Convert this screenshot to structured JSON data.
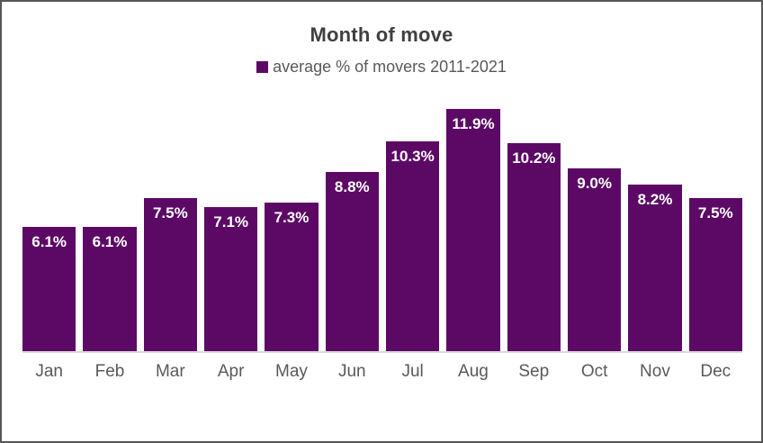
{
  "frame": {
    "background": "#ffffff",
    "border_color": "#575757"
  },
  "chart_data": {
    "type": "bar",
    "title": "Month of move",
    "title_color": "#404040",
    "legend": [
      {
        "label": "average % of movers 2011-2021",
        "color": "#5c0966"
      }
    ],
    "legend_position": "top",
    "categories": [
      "Jan",
      "Feb",
      "Mar",
      "Apr",
      "May",
      "Jun",
      "Jul",
      "Aug",
      "Sep",
      "Oct",
      "Nov",
      "Dec"
    ],
    "values": [
      6.1,
      6.1,
      7.5,
      7.1,
      7.3,
      8.8,
      10.3,
      11.9,
      10.2,
      9.0,
      8.2,
      7.5
    ],
    "data_labels": [
      "6.1%",
      "6.1%",
      "7.5%",
      "7.1%",
      "7.3%",
      "8.8%",
      "10.3%",
      "11.9%",
      "10.2%",
      "9.0%",
      "8.2%",
      "7.5%"
    ],
    "xlabel": "",
    "ylabel": "",
    "ylim": [
      0,
      12.3
    ],
    "grid": false,
    "bar_color": "#5c0966",
    "bar_label_color": "#ffffff",
    "axis_text_color": "#595959",
    "baseline_color": "#d9d9d9"
  }
}
